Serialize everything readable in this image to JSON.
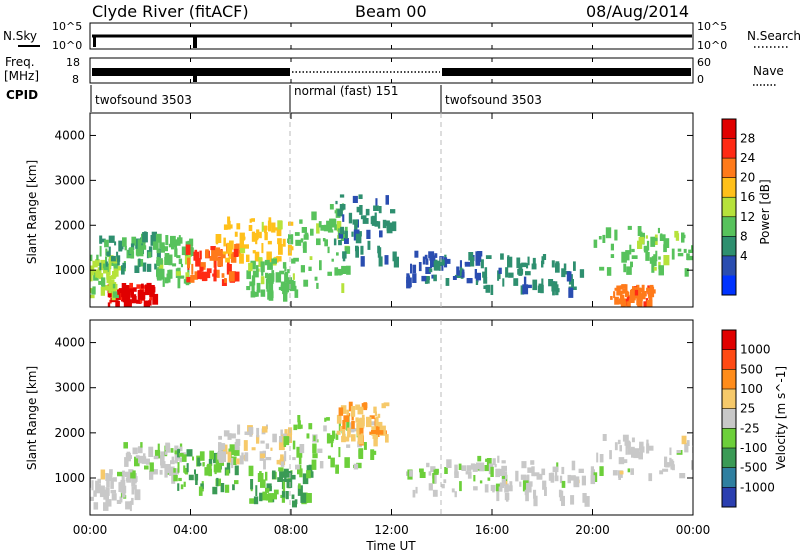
{
  "header": {
    "station": "Clyde River (fitACF)",
    "beam": "Beam 00",
    "date": "08/Aug/2014"
  },
  "status_panels": {
    "nsky_label": "N.Sky",
    "nsearch_label": "N.Search",
    "freq_label": "Freq.",
    "freq_unit": "[MHz]",
    "nave_label": "Nave",
    "cpid_label": "CPID",
    "noise_ticks_left": [
      "10^5",
      "10^0"
    ],
    "noise_ticks_right": [
      "10^5",
      "10^0"
    ],
    "freq_ticks": [
      "18",
      "8"
    ],
    "nave_ticks": [
      "60",
      "0"
    ],
    "cpid_segments": [
      {
        "label": "twofsound 3503",
        "start_hour": 0,
        "end_hour": 8
      },
      {
        "label": "normal (fast) 151",
        "start_hour": 8,
        "end_hour": 14
      },
      {
        "label": "twofsound 3503",
        "start_hour": 14,
        "end_hour": 24
      }
    ]
  },
  "power_panel": {
    "ylabel": "Slant Range [km]",
    "colorbar_label": "Power [dB]",
    "colorbar_ticks": [
      "28",
      "24",
      "20",
      "16",
      "12",
      "8",
      "4"
    ],
    "colorbar_colors": [
      "#0033ff",
      "#2a4db0",
      "#2e8f6f",
      "#57c25c",
      "#b6e23b",
      "#ffc01a",
      "#ff7a1a",
      "#ff2a14",
      "#e00000"
    ]
  },
  "velocity_panel": {
    "ylabel": "Slant Range [km]",
    "colorbar_label": "Velocity [m s^-1]",
    "colorbar_ticks": [
      "1000",
      "500",
      "100",
      "25",
      "-25",
      "-100",
      "-500",
      "-1000"
    ],
    "colorbar_colors": [
      "#2b3fb0",
      "#2f7fa0",
      "#3a9a55",
      "#6ccf3a",
      "#c8c8c8",
      "#f6c96a",
      "#ff8c1a",
      "#ff4a14",
      "#e00000"
    ]
  },
  "x_axis": {
    "label": "Time UT",
    "ticks": [
      "00:00",
      "04:00",
      "08:00",
      "12:00",
      "16:00",
      "20:00",
      "00:00"
    ]
  },
  "chart_data": {
    "type": "heatmap",
    "title": "Clyde River (fitACF) Beam 00 08/Aug/2014",
    "xlabel": "Time UT",
    "ylabel": "Slant Range [km]",
    "xlim_hours": [
      0,
      24
    ],
    "ylim_km": [
      180,
      4500
    ],
    "y_ticks": [
      1000,
      2000,
      3000,
      4000
    ],
    "panels": [
      {
        "name": "Power",
        "unit": "dB",
        "range": [
          0,
          30
        ],
        "blobs": [
          {
            "t": 1.6,
            "r": 500,
            "dt": 0.9,
            "dr": 220,
            "v": 28
          },
          {
            "t": 0.5,
            "r": 900,
            "dt": 0.6,
            "dr": 450,
            "v": 14
          },
          {
            "t": 1.5,
            "r": 1500,
            "dt": 1.2,
            "dr": 400,
            "v": 10
          },
          {
            "t": 3.3,
            "r": 1300,
            "dt": 0.7,
            "dr": 500,
            "v": 12
          },
          {
            "t": 4.8,
            "r": 1200,
            "dt": 1.0,
            "dr": 400,
            "v": 24
          },
          {
            "t": 6.5,
            "r": 1700,
            "dt": 1.5,
            "dr": 500,
            "v": 18
          },
          {
            "t": 7.2,
            "r": 900,
            "dt": 1.0,
            "dr": 400,
            "v": 12
          },
          {
            "t": 9.0,
            "r": 1600,
            "dt": 1.2,
            "dr": 900,
            "v": 12
          },
          {
            "t": 11.0,
            "r": 2000,
            "dt": 1.3,
            "dr": 700,
            "v": 8
          },
          {
            "t": 14.0,
            "r": 1100,
            "dt": 1.5,
            "dr": 350,
            "v": 6
          },
          {
            "t": 17.5,
            "r": 1000,
            "dt": 2.0,
            "dr": 400,
            "v": 8
          },
          {
            "t": 22.0,
            "r": 1500,
            "dt": 2.0,
            "dr": 500,
            "v": 12
          },
          {
            "t": 21.5,
            "r": 500,
            "dt": 0.8,
            "dr": 200,
            "v": 22
          }
        ]
      },
      {
        "name": "Velocity",
        "unit": "m s^-1",
        "range": [
          -1000,
          1000
        ],
        "blobs": [
          {
            "t": 0.8,
            "r": 800,
            "dt": 1.0,
            "dr": 400,
            "v": 0
          },
          {
            "t": 2.5,
            "r": 1400,
            "dt": 1.2,
            "dr": 400,
            "v": -80
          },
          {
            "t": 4.6,
            "r": 1300,
            "dt": 1.2,
            "dr": 500,
            "v": -300
          },
          {
            "t": 6.5,
            "r": 1800,
            "dt": 1.5,
            "dr": 400,
            "v": 60
          },
          {
            "t": 7.5,
            "r": 900,
            "dt": 1.2,
            "dr": 400,
            "v": -300
          },
          {
            "t": 9.5,
            "r": 1800,
            "dt": 1.8,
            "dr": 600,
            "v": -200
          },
          {
            "t": 10.8,
            "r": 2300,
            "dt": 1.0,
            "dr": 400,
            "v": 300
          },
          {
            "t": 14.5,
            "r": 1100,
            "dt": 2.0,
            "dr": 400,
            "v": -60
          },
          {
            "t": 18.0,
            "r": 1000,
            "dt": 2.0,
            "dr": 400,
            "v": 0
          },
          {
            "t": 22.0,
            "r": 1500,
            "dt": 2.2,
            "dr": 500,
            "v": 0
          }
        ]
      }
    ]
  }
}
